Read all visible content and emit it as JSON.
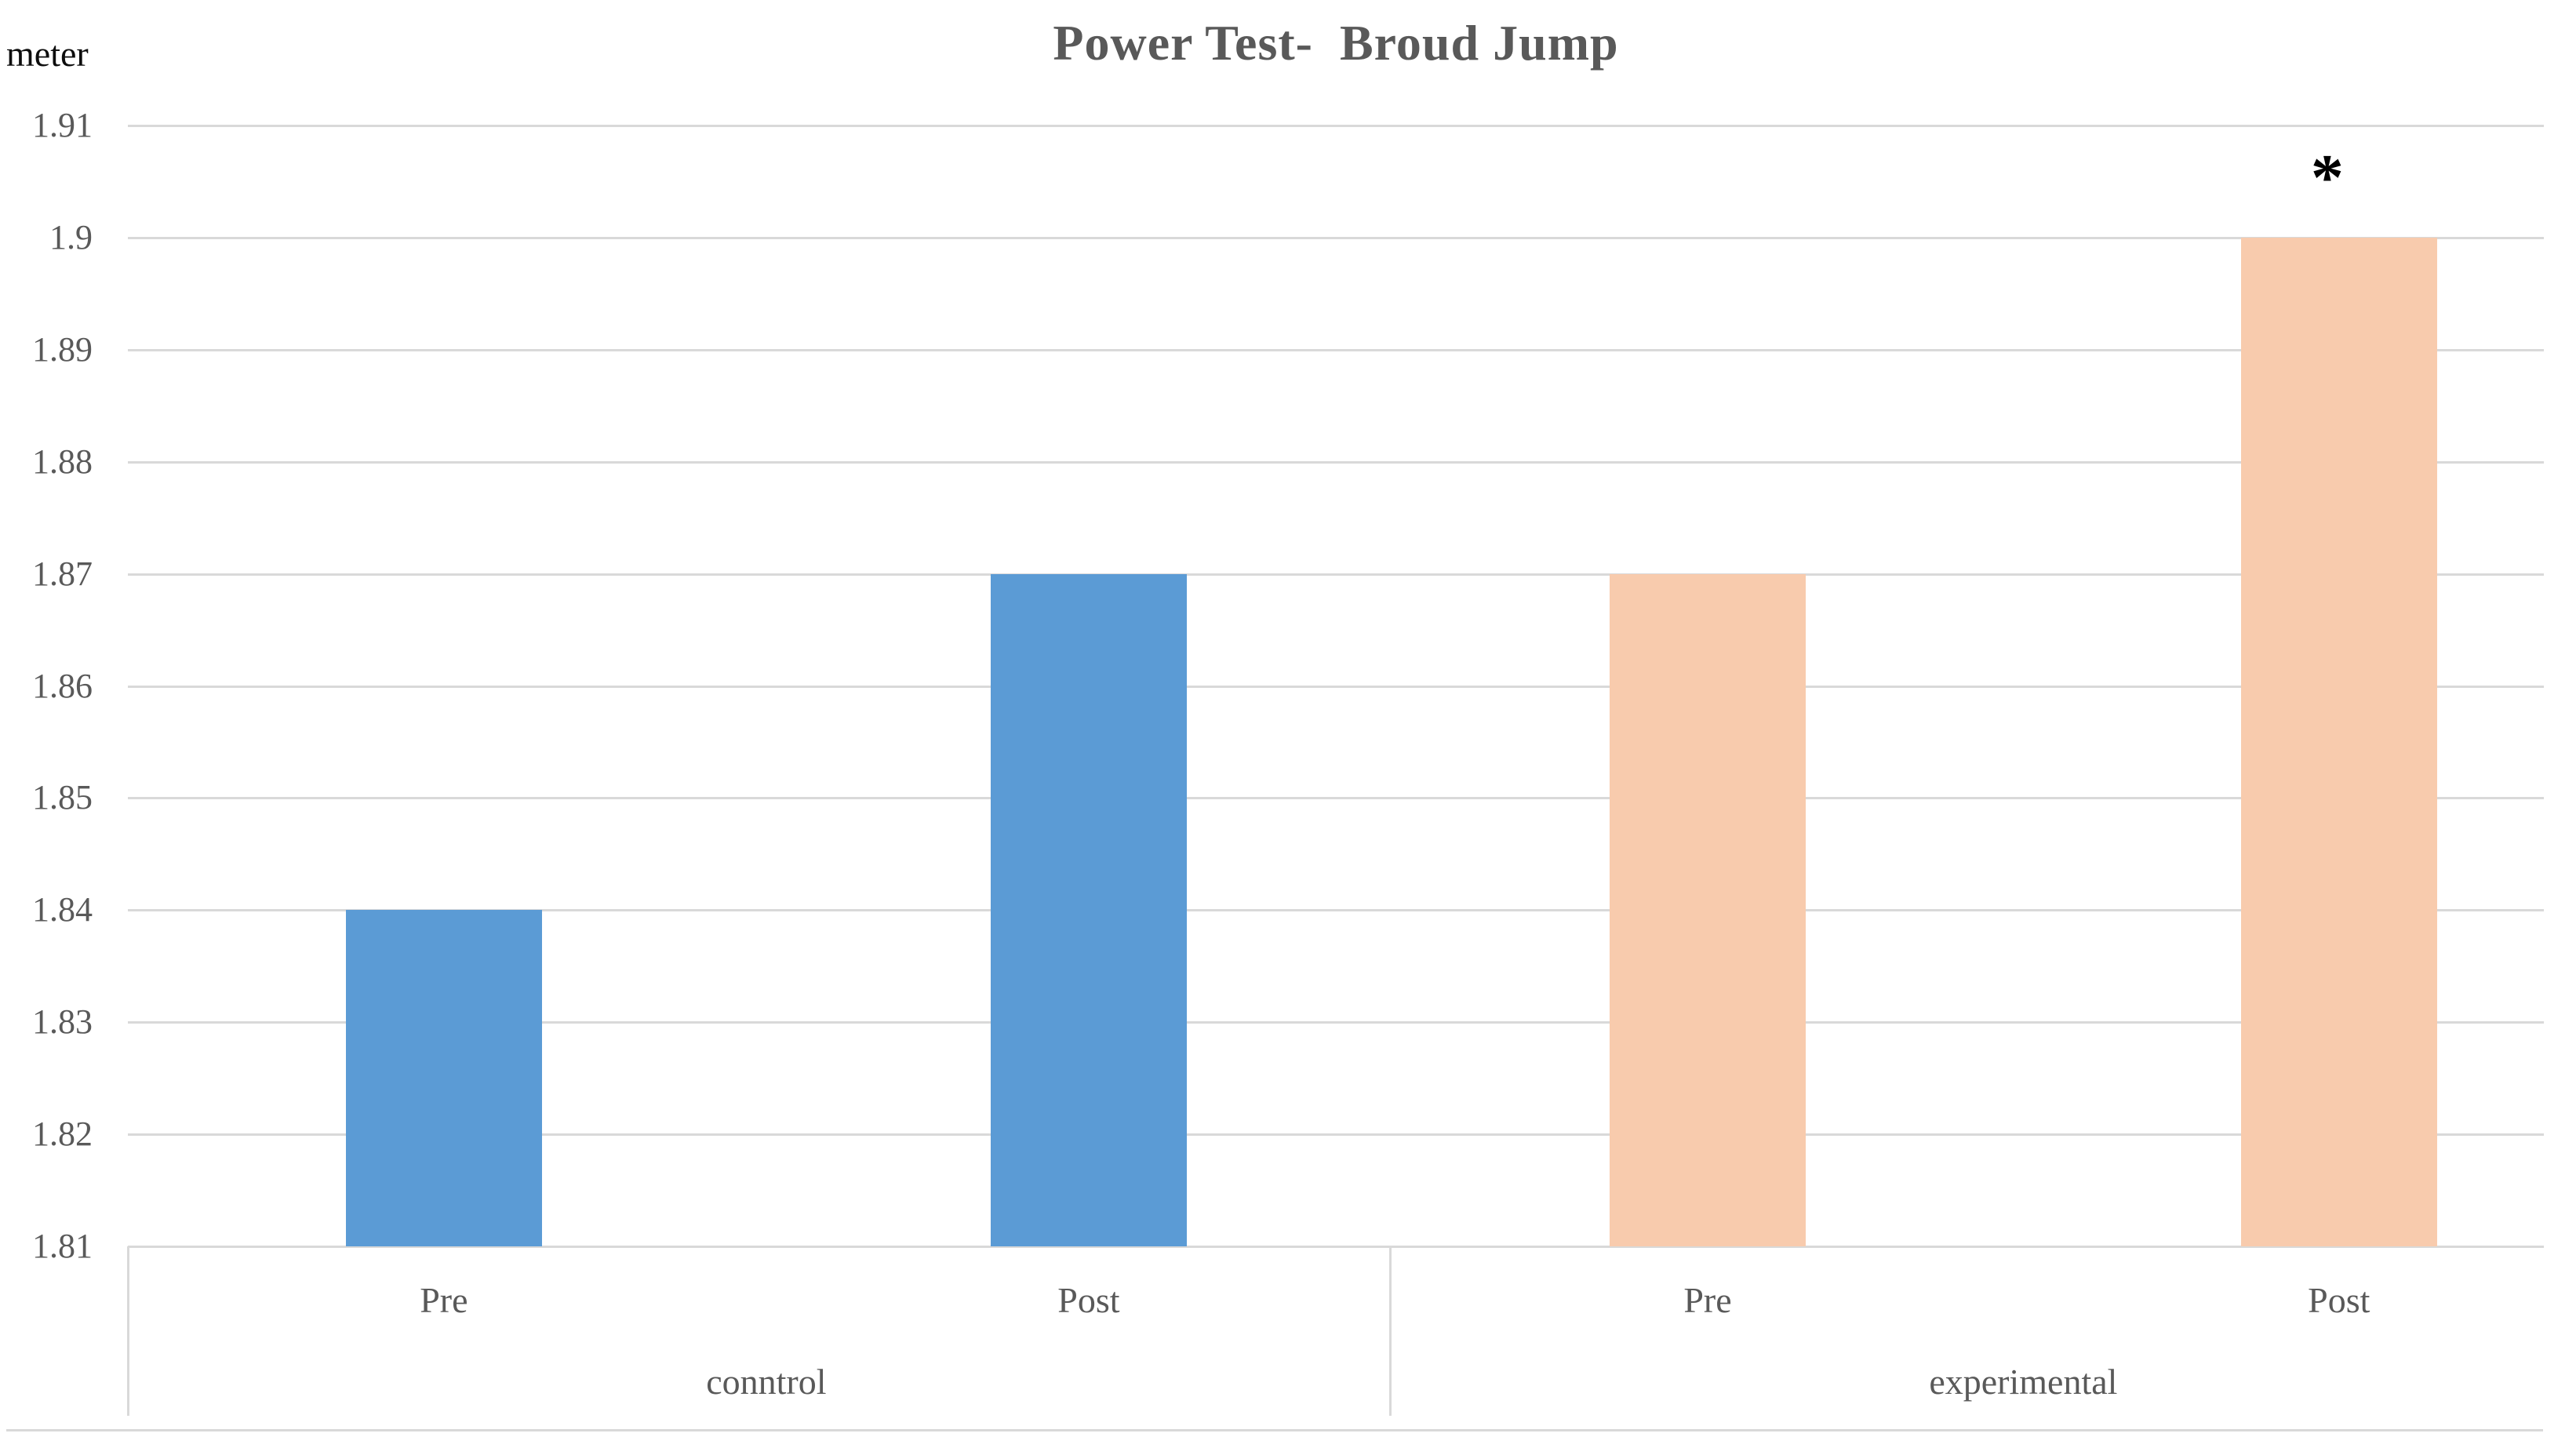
{
  "page": {
    "background": "#FFFFFF"
  },
  "chart_data": {
    "type": "bar",
    "title": "Power Test-  Broud Jump",
    "unit_label": "meter",
    "ylabel": "meter",
    "xlabel": "",
    "ylim": [
      1.81,
      1.91
    ],
    "y_tick_step": 0.01,
    "y_ticks": [
      "1.91",
      "1.9",
      "1.89",
      "1.88",
      "1.87",
      "1.86",
      "1.85",
      "1.84",
      "1.83",
      "1.82",
      "1.81"
    ],
    "grid": true,
    "legend": false,
    "categories": [
      "Pre",
      "Post",
      "Pre",
      "Post"
    ],
    "groups": [
      {
        "label": "conntrol",
        "color": "#5B9BD5",
        "bars": [
          {
            "label": "Pre",
            "value": 1.84
          },
          {
            "label": "Post",
            "value": 1.87
          }
        ]
      },
      {
        "label": "experimental",
        "color": "#F8CBAD",
        "bars": [
          {
            "label": "Pre",
            "value": 1.87
          },
          {
            "label": "Post",
            "value": 1.9,
            "annotation": "*"
          }
        ]
      }
    ],
    "colors": {
      "grid": "#D9D9D9",
      "axis_text": "#595959",
      "title_text": "#595959",
      "unit_text": "#000000",
      "annotation": "#000000",
      "control_series": "#5B9BD5",
      "experimental_series": "#F8CBAD"
    }
  }
}
